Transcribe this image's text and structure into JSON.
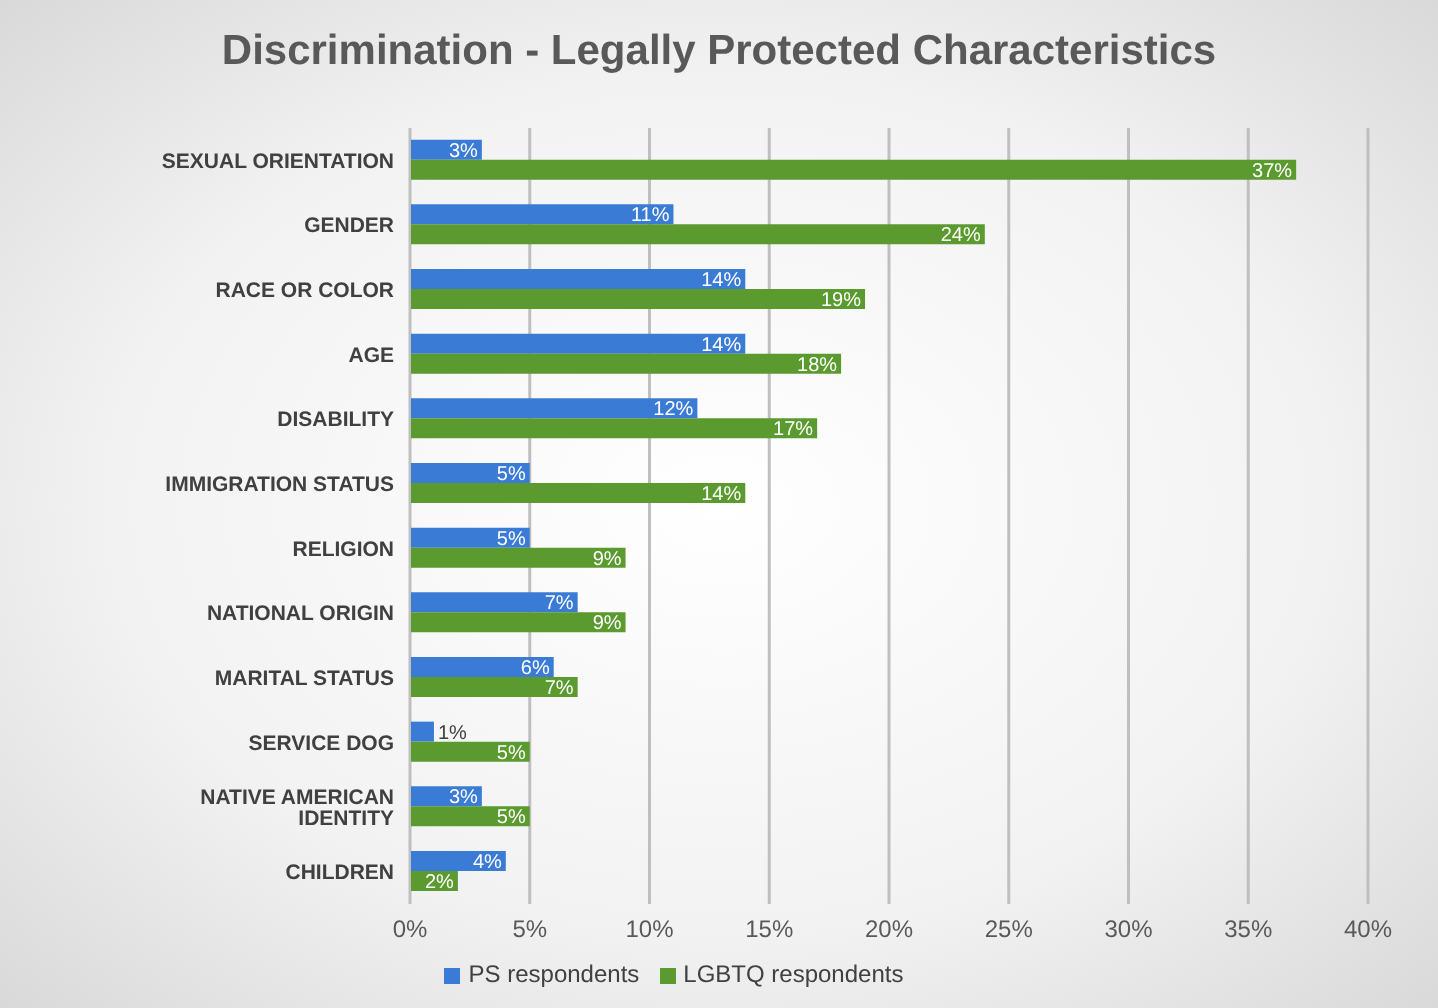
{
  "chart_data": {
    "type": "bar",
    "orientation": "horizontal",
    "title": "Discrimination - Legally Protected Characteristics",
    "categories": [
      "SEXUAL ORIENTATION",
      "GENDER",
      "RACE OR COLOR",
      "AGE",
      "DISABILITY",
      "IMMIGRATION STATUS",
      "RELIGION",
      "NATIONAL ORIGIN",
      "MARITAL STATUS",
      "SERVICE DOG",
      "NATIVE AMERICAN IDENTITY",
      "CHILDREN"
    ],
    "series": [
      {
        "name": "PS respondents",
        "color": "#3a7bd5",
        "values": [
          3,
          11,
          14,
          14,
          12,
          5,
          5,
          7,
          6,
          1,
          3,
          4
        ],
        "value_labels": [
          "3%",
          "11%",
          "14%",
          "14%",
          "12%",
          "5%",
          "5%",
          "7%",
          "6%",
          "1%",
          "3%",
          "4%"
        ]
      },
      {
        "name": "LGBTQ respondents",
        "color": "#5a9a2f",
        "values": [
          37,
          24,
          19,
          18,
          17,
          14,
          9,
          9,
          7,
          5,
          5,
          2
        ],
        "value_labels": [
          "37%",
          "24%",
          "19%",
          "18%",
          "17%",
          "14%",
          "9%",
          "9%",
          "7%",
          "5%",
          "5%",
          "2%"
        ]
      }
    ],
    "xlim": [
      0,
      40
    ],
    "xticks": [
      {
        "value": 0,
        "label": "0%"
      },
      {
        "value": 5,
        "label": "5%"
      },
      {
        "value": 10,
        "label": "10%"
      },
      {
        "value": 15,
        "label": "15%"
      },
      {
        "value": 20,
        "label": "20%"
      },
      {
        "value": 25,
        "label": "25%"
      },
      {
        "value": 30,
        "label": "30%"
      },
      {
        "value": 35,
        "label": "35%"
      },
      {
        "value": 40,
        "label": "40%"
      }
    ],
    "grid": "x",
    "legend": "bottom"
  }
}
